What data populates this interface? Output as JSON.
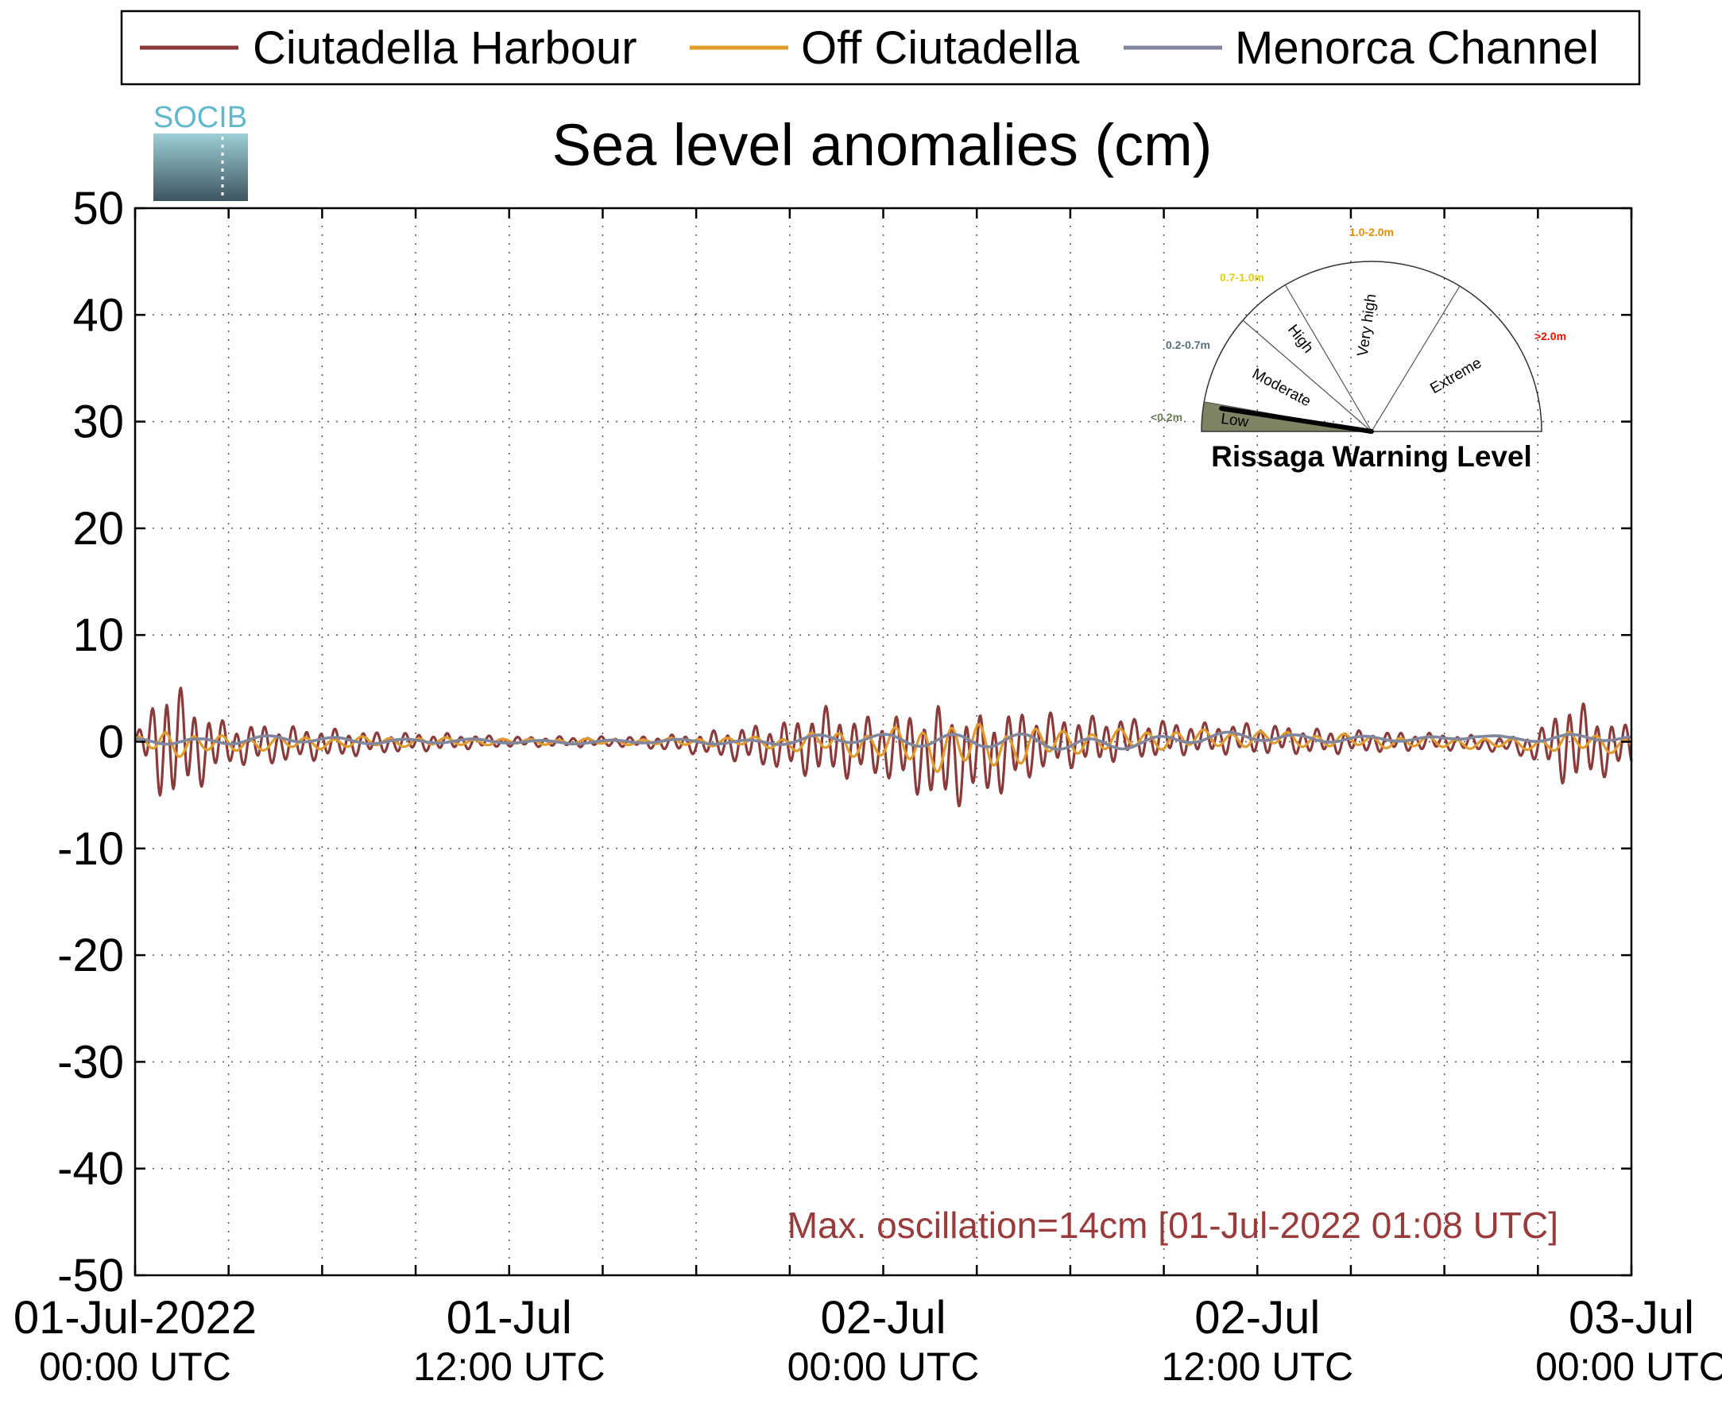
{
  "chart_data": {
    "type": "line",
    "title": "Sea level anomalies (cm)",
    "ylim": [
      -50,
      50
    ],
    "y_ticks": [
      -50,
      -40,
      -30,
      -20,
      -10,
      0,
      10,
      20,
      30,
      40,
      50
    ],
    "x_range_hours": [
      0,
      48
    ],
    "x_tick_labels": [
      {
        "at_hours": 0,
        "line1": "01-Jul-2022",
        "line2": "00:00 UTC"
      },
      {
        "at_hours": 12,
        "line1": "01-Jul",
        "line2": "12:00 UTC"
      },
      {
        "at_hours": 24,
        "line1": "02-Jul",
        "line2": "00:00 UTC"
      },
      {
        "at_hours": 36,
        "line1": "02-Jul",
        "line2": "12:00 UTC"
      },
      {
        "at_hours": 48,
        "line1": "03-Jul",
        "line2": "00:00 UTC"
      }
    ],
    "grid": true,
    "legend_position": "top",
    "series": [
      {
        "name": "Ciutadella Harbour",
        "color": "#8b3a3a",
        "x_hours": [
          0,
          1,
          2,
          3,
          4,
          6,
          8,
          10,
          12,
          16,
          18,
          20,
          21,
          22,
          23,
          24,
          25,
          26,
          27,
          28,
          29,
          30,
          32,
          34,
          36,
          38,
          40,
          42,
          44,
          45,
          46,
          47,
          48
        ],
        "amplitude": [
          0.5,
          6.5,
          4,
          2,
          2,
          1.5,
          1,
          0.8,
          0.5,
          0.5,
          1,
          2,
          2.5,
          3.5,
          3,
          3,
          4,
          5,
          4,
          4,
          3,
          2.5,
          2,
          1.5,
          1.5,
          1.2,
          1,
          0.8,
          0.7,
          1.5,
          4.5,
          3,
          2
        ],
        "offset": [
          0,
          0,
          -0.5,
          -0.3,
          -0.3,
          -0.2,
          -0.1,
          0,
          0,
          0,
          -0.2,
          -0.3,
          -0.5,
          0,
          -0.5,
          -0.5,
          -1,
          -1.5,
          -1.5,
          -1,
          0,
          0,
          0.3,
          0.3,
          0.3,
          0,
          0,
          0,
          -0.3,
          -0.5,
          0,
          -0.5,
          -0.5
        ]
      },
      {
        "name": "Off Ciutadella",
        "color": "#e29a2b",
        "x_hours": [
          0,
          1,
          2,
          3,
          4,
          8,
          12,
          16,
          20,
          21,
          22,
          24,
          26,
          28,
          30,
          32,
          36,
          40,
          44,
          45,
          46,
          48
        ],
        "amplitude": [
          0.3,
          1.5,
          1,
          0.8,
          0.7,
          0.5,
          0.3,
          0.3,
          0.5,
          0.8,
          1,
          1.5,
          2.5,
          2,
          1.2,
          1,
          0.8,
          0.6,
          0.5,
          0.6,
          1,
          0.8
        ],
        "offset": [
          0,
          0,
          -0.3,
          -0.2,
          -0.2,
          0,
          0,
          0,
          0,
          -0.2,
          0,
          -0.3,
          -0.5,
          -0.5,
          0,
          0.2,
          0.3,
          0,
          -0.2,
          -0.3,
          0,
          -0.3
        ]
      },
      {
        "name": "Menorca Channel",
        "color": "#7f869e",
        "x_hours": [
          0,
          1,
          2,
          3,
          4,
          8,
          12,
          16,
          20,
          22,
          24,
          26,
          28,
          30,
          32,
          36,
          40,
          42,
          43,
          44,
          46,
          48
        ],
        "amplitude": [
          0.3,
          0.6,
          0.5,
          0.5,
          0.4,
          0.3,
          0.2,
          0.2,
          0.3,
          0.5,
          0.6,
          0.8,
          0.8,
          0.8,
          0.6,
          0.5,
          0.3,
          0.3,
          0.3,
          0.3,
          0.4,
          0.3
        ],
        "offset": [
          0,
          0.3,
          0,
          0.2,
          0.2,
          0.1,
          0,
          0,
          0,
          0.2,
          0.2,
          0.3,
          0,
          -0.3,
          0,
          0.5,
          0.2,
          0.2,
          0.7,
          0.3,
          0.3,
          0.3
        ]
      }
    ],
    "annotation": {
      "text": "Max. oscillation=14cm [01-Jul-2022 01:08 UTC]",
      "color": "#9b3a3a"
    },
    "logo": {
      "text": "SOCIB",
      "color": "#5fb8cc"
    },
    "gauge": {
      "title": "Rissaga Warning Level",
      "current_level": "Low",
      "levels": [
        {
          "name": "Low",
          "range": "<0.2m",
          "range_color": "#6a7a55"
        },
        {
          "name": "Moderate",
          "range": "0.2-0.7m",
          "range_color": "#5a6f7d"
        },
        {
          "name": "High",
          "range": "0.7-1.0m",
          "range_color": "#e5cf10"
        },
        {
          "name": "Very high",
          "range": "1.0-2.0m",
          "range_color": "#ee8a00"
        },
        {
          "name": "Extreme",
          "range": ">2.0m",
          "range_color": "#ee1100"
        }
      ],
      "low_fill": "#7c8463"
    }
  }
}
